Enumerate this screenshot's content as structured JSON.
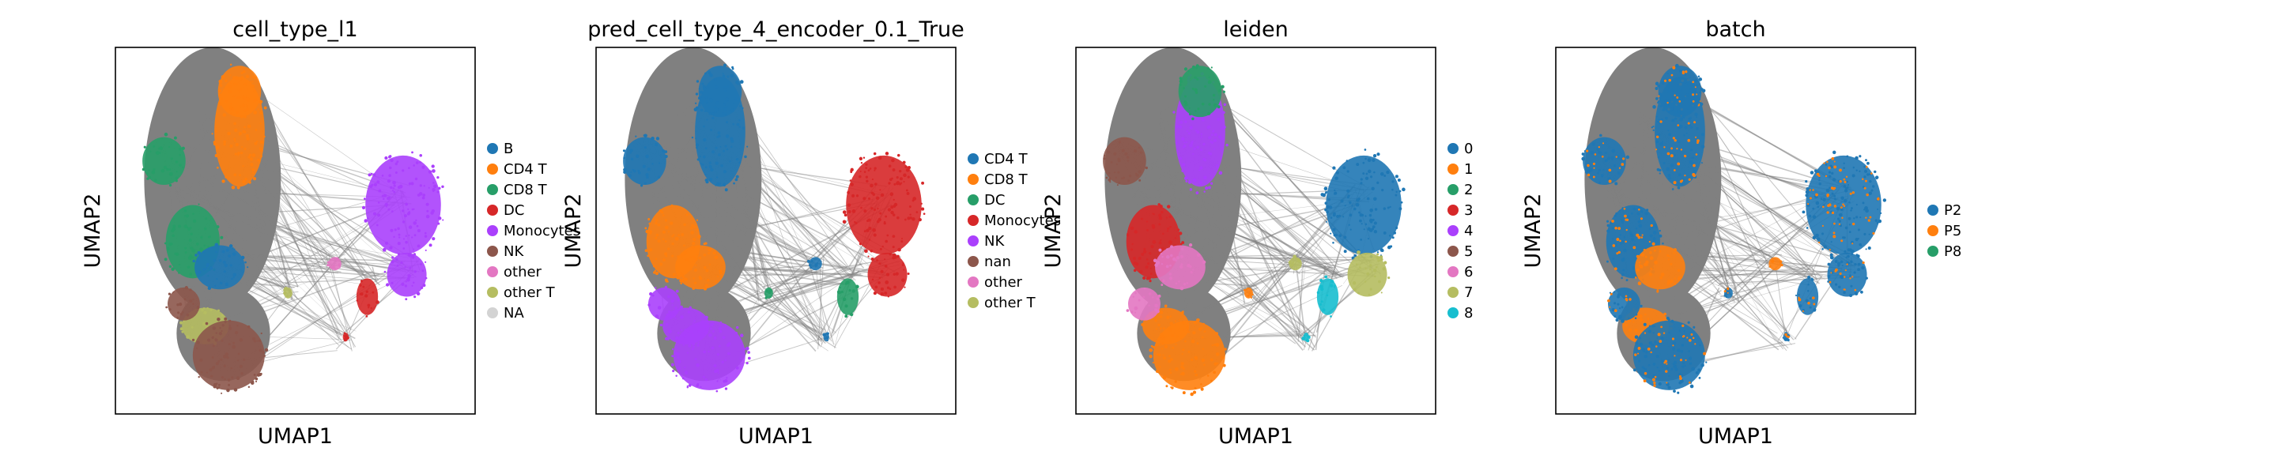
{
  "chart_data": [
    {
      "type": "scatter",
      "title": "cell_type_l1",
      "xlabel": "UMAP1",
      "ylabel": "UMAP2",
      "grid": false,
      "legend_placement": "right",
      "paga_edges_color": "#808080",
      "series": [
        {
          "name": "B",
          "color": "#1f77b4"
        },
        {
          "name": "CD4 T",
          "color": "#ff7f0e"
        },
        {
          "name": "CD8 T",
          "color": "#279e68"
        },
        {
          "name": "DC",
          "color": "#d62728"
        },
        {
          "name": "Monocytes",
          "color": "#aa40fc"
        },
        {
          "name": "NK",
          "color": "#8c564b"
        },
        {
          "name": "other",
          "color": "#e377c2"
        },
        {
          "name": "other T",
          "color": "#b5bd61"
        },
        {
          "name": "NA",
          "color": "#d3d3d3"
        }
      ]
    },
    {
      "type": "scatter",
      "title": "pred_cell_type_4_encoder_0.1_True",
      "xlabel": "UMAP1",
      "ylabel": "UMAP2",
      "grid": false,
      "legend_placement": "right",
      "paga_edges_color": "#808080",
      "series": [
        {
          "name": "CD4 T",
          "color": "#1f77b4"
        },
        {
          "name": "CD8 T",
          "color": "#ff7f0e"
        },
        {
          "name": "DC",
          "color": "#279e68"
        },
        {
          "name": "Monocytes",
          "color": "#d62728"
        },
        {
          "name": "NK",
          "color": "#aa40fc"
        },
        {
          "name": "nan",
          "color": "#8c564b"
        },
        {
          "name": "other",
          "color": "#e377c2"
        },
        {
          "name": "other T",
          "color": "#b5bd61"
        }
      ]
    },
    {
      "type": "scatter",
      "title": "leiden",
      "xlabel": "UMAP1",
      "ylabel": "UMAP2",
      "grid": false,
      "legend_placement": "right",
      "paga_edges_color": "#808080",
      "series": [
        {
          "name": "0",
          "color": "#1f77b4"
        },
        {
          "name": "1",
          "color": "#ff7f0e"
        },
        {
          "name": "2",
          "color": "#279e68"
        },
        {
          "name": "3",
          "color": "#d62728"
        },
        {
          "name": "4",
          "color": "#aa40fc"
        },
        {
          "name": "5",
          "color": "#8c564b"
        },
        {
          "name": "6",
          "color": "#e377c2"
        },
        {
          "name": "7",
          "color": "#b5bd61"
        },
        {
          "name": "8",
          "color": "#17becf"
        }
      ]
    },
    {
      "type": "scatter",
      "title": "batch",
      "xlabel": "UMAP1",
      "ylabel": "UMAP2",
      "grid": false,
      "legend_placement": "right",
      "paga_edges_color": "#808080",
      "series": [
        {
          "name": "P2",
          "color": "#1f77b4"
        },
        {
          "name": "P5",
          "color": "#ff7f0e"
        },
        {
          "name": "P8",
          "color": "#279e68"
        }
      ]
    }
  ]
}
